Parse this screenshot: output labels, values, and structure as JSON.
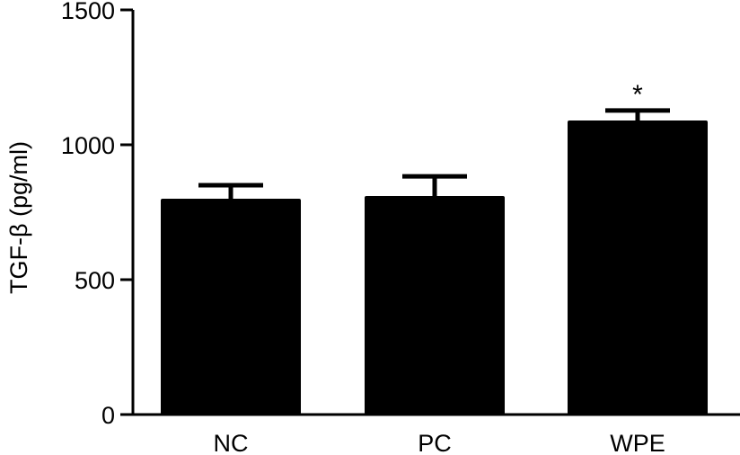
{
  "chart_data": {
    "type": "bar",
    "title": "",
    "xlabel": "",
    "ylabel": "TGF-β (pg/ml)",
    "categories": [
      "NC",
      "PC",
      "WPE"
    ],
    "values": [
      800,
      810,
      1090
    ],
    "errors": [
      50,
      73,
      37
    ],
    "annotations": [
      "",
      "",
      "*"
    ],
    "ylim": [
      0,
      1500
    ],
    "yticks": [
      0,
      500,
      1000,
      1500
    ],
    "grid": false,
    "bar_color": "#000000"
  }
}
